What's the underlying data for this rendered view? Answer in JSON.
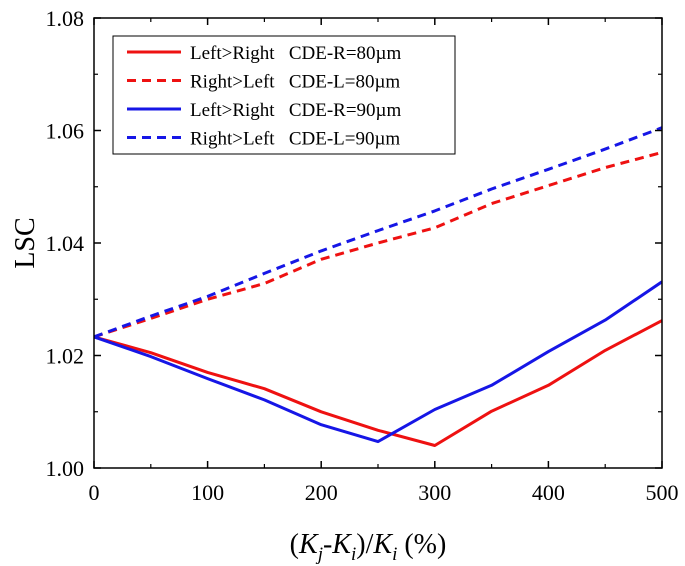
{
  "chart_data": {
    "type": "line",
    "xlabel_parts": [
      "(",
      "K",
      "j",
      "-",
      "K",
      "i",
      ")/",
      "K",
      "i",
      " (%)"
    ],
    "ylabel": "LSC",
    "xlim": [
      0,
      500
    ],
    "ylim": [
      1.0,
      1.08
    ],
    "xticks": [
      "0",
      "100",
      "200",
      "300",
      "400",
      "500"
    ],
    "yticks": [
      "1.00",
      "1.02",
      "1.04",
      "1.06",
      "1.08"
    ],
    "legend_position": "top-left",
    "series": [
      {
        "name": "Left>Right   CDE-R=80µm",
        "color": "#ee1111",
        "dash": "solid",
        "x": [
          0,
          50,
          100,
          150,
          200,
          250,
          300,
          350,
          400,
          450,
          500
        ],
        "values": [
          1.0233,
          1.0205,
          1.017,
          1.0141,
          1.01,
          1.0067,
          1.004,
          1.0101,
          1.0147,
          1.0209,
          1.0262
        ]
      },
      {
        "name": "Right>Left   CDE-L=80µm",
        "color": "#ee1111",
        "dash": "dashed",
        "x": [
          0,
          50,
          100,
          150,
          200,
          250,
          300,
          350,
          400,
          450,
          500
        ],
        "values": [
          1.0233,
          1.0266,
          1.03,
          1.0328,
          1.0371,
          1.04,
          1.0427,
          1.047,
          1.0502,
          1.0534,
          1.0561
        ]
      },
      {
        "name": "Left>Right   CDE-R=90µm",
        "color": "#1616e6",
        "dash": "solid",
        "x": [
          0,
          50,
          100,
          150,
          200,
          250,
          300,
          350,
          400,
          450,
          500
        ],
        "values": [
          1.0233,
          1.0198,
          1.0159,
          1.0121,
          1.0077,
          1.0047,
          1.0104,
          1.0147,
          1.0207,
          1.0263,
          1.0331
        ]
      },
      {
        "name": "Right>Left   CDE-L=90µm",
        "color": "#1616e6",
        "dash": "dashed",
        "x": [
          0,
          50,
          100,
          150,
          200,
          250,
          300,
          350,
          400,
          450,
          500
        ],
        "values": [
          1.0233,
          1.027,
          1.0305,
          1.0346,
          1.0386,
          1.0422,
          1.0457,
          1.0496,
          1.0531,
          1.0567,
          1.0605
        ]
      }
    ]
  }
}
